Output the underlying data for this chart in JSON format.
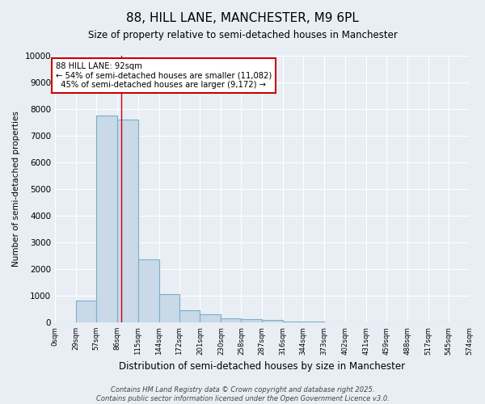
{
  "title": "88, HILL LANE, MANCHESTER, M9 6PL",
  "subtitle": "Size of property relative to semi-detached houses in Manchester",
  "xlabel": "Distribution of semi-detached houses by size in Manchester",
  "ylabel": "Number of semi-detached properties",
  "property_label": "88 HILL LANE: 92sqm",
  "annotation_line1": "← 54% of semi-detached houses are smaller (11,082)",
  "annotation_line2": "  45% of semi-detached houses are larger (9,172) →",
  "bin_edges": [
    0,
    29,
    57,
    86,
    115,
    144,
    172,
    201,
    230,
    258,
    287,
    316,
    344,
    373,
    402,
    431,
    459,
    488,
    517,
    545,
    574
  ],
  "bar_values": [
    0,
    820,
    7750,
    7600,
    2350,
    1050,
    450,
    290,
    150,
    110,
    90,
    20,
    20,
    10,
    5,
    3,
    2,
    1,
    1,
    1
  ],
  "bar_color": "#c9d9e8",
  "bar_edge_color": "#7aafc8",
  "vline_color": "#cc0000",
  "vline_x": 92,
  "ylim": [
    0,
    10000
  ],
  "yticks": [
    0,
    1000,
    2000,
    3000,
    4000,
    5000,
    6000,
    7000,
    8000,
    9000,
    10000
  ],
  "tick_labels": [
    "0sqm",
    "29sqm",
    "57sqm",
    "86sqm",
    "115sqm",
    "144sqm",
    "172sqm",
    "201sqm",
    "230sqm",
    "258sqm",
    "287sqm",
    "316sqm",
    "344sqm",
    "373sqm",
    "402sqm",
    "431sqm",
    "459sqm",
    "488sqm",
    "517sqm",
    "545sqm",
    "574sqm"
  ],
  "footer1": "Contains HM Land Registry data © Crown copyright and database right 2025.",
  "footer2": "Contains public sector information licensed under the Open Government Licence v3.0.",
  "background_color": "#e8eef4",
  "grid_color": "#ffffff",
  "annotation_box_color": "#ffffff",
  "annotation_box_edge": "#cc0000"
}
